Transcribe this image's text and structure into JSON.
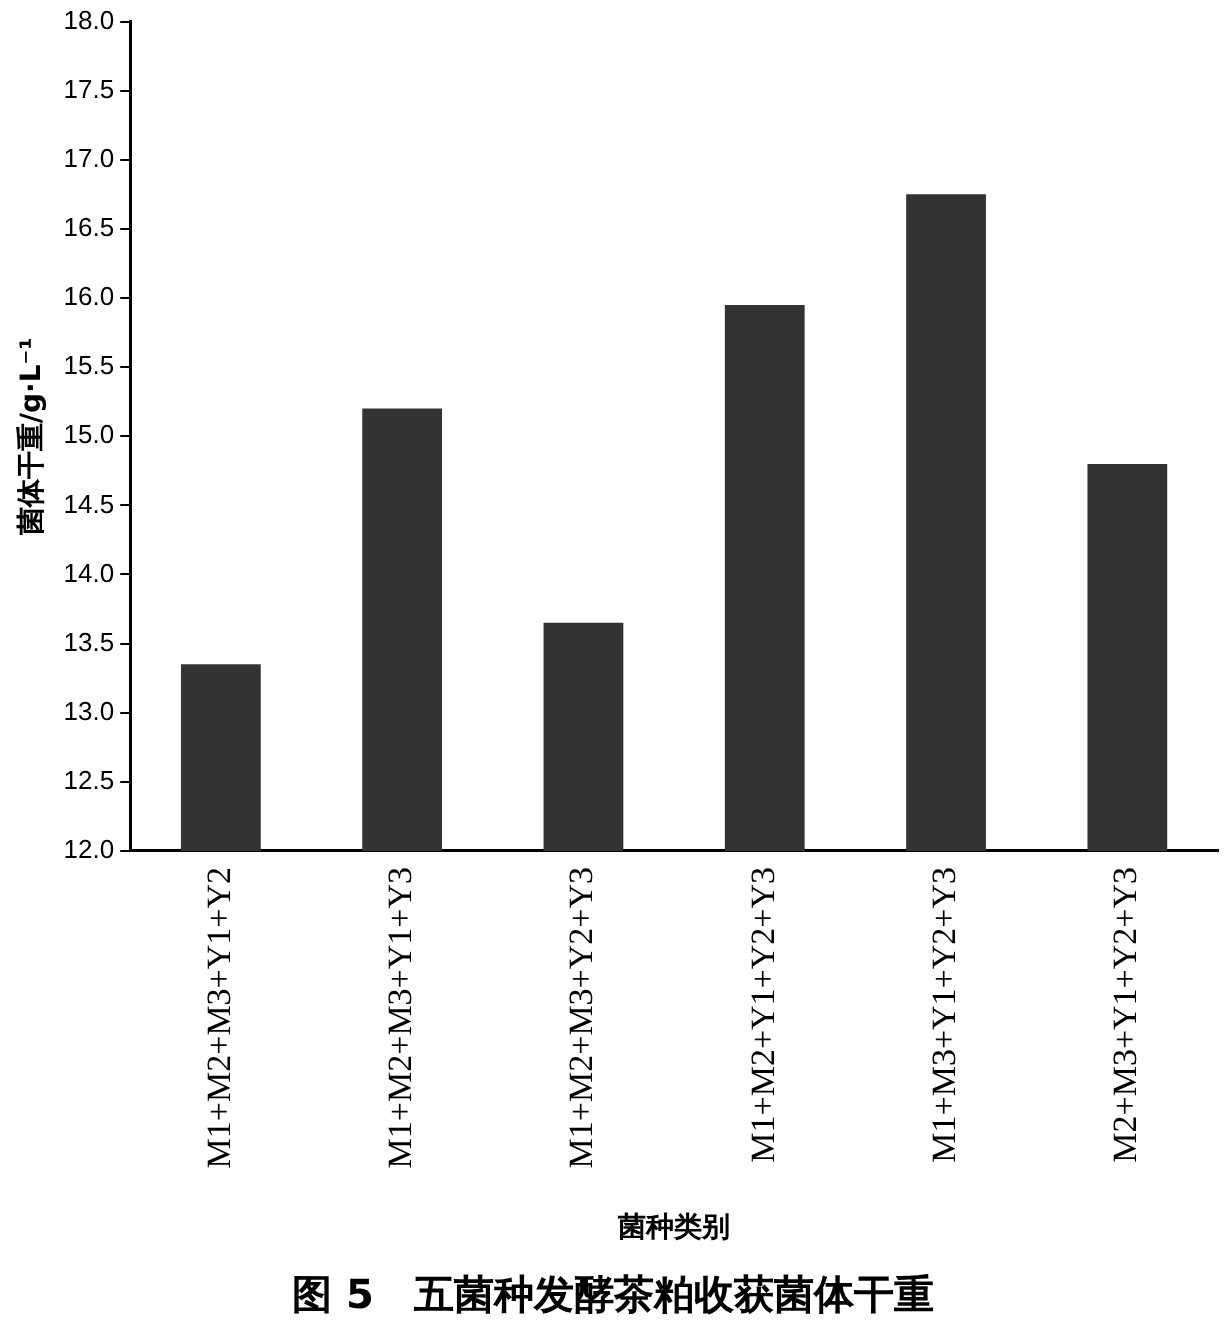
{
  "chart_data": {
    "type": "bar",
    "title": "图 5　五菌种发酵茶粕收获菌体干重",
    "xlabel": "菌种类别",
    "ylabel": "菌体干重/g·L⁻¹",
    "categories": [
      "M1+M2+M3+Y1+Y2",
      "M1+M2+M3+Y1+Y3",
      "M1+M2+M3+Y2+Y3",
      "M1+M2+Y1+Y2+Y3",
      "M1+M3+Y1+Y2+Y3",
      "M2+M3+Y1+Y2+Y3"
    ],
    "values": [
      13.35,
      15.2,
      13.65,
      15.95,
      16.75,
      14.8
    ],
    "color": "#333333",
    "ylim": [
      12,
      18
    ],
    "yticks": [
      {
        "value": 12,
        "label": "12.0"
      },
      {
        "value": 12.5,
        "label": "12.5"
      },
      {
        "value": 13,
        "label": "13.0"
      },
      {
        "value": 13.5,
        "label": "13.5"
      },
      {
        "value": 14,
        "label": "14.0"
      },
      {
        "value": 14.5,
        "label": "14.5"
      },
      {
        "value": 15,
        "label": "15.0"
      },
      {
        "value": 15.5,
        "label": "15.5"
      },
      {
        "value": 16,
        "label": "16.0"
      },
      {
        "value": 16.5,
        "label": "16.5"
      },
      {
        "value": 17,
        "label": "17.0"
      },
      {
        "value": 17.5,
        "label": "17.5"
      },
      {
        "value": 18,
        "label": "18.0"
      }
    ],
    "grid": false,
    "legend": false
  }
}
